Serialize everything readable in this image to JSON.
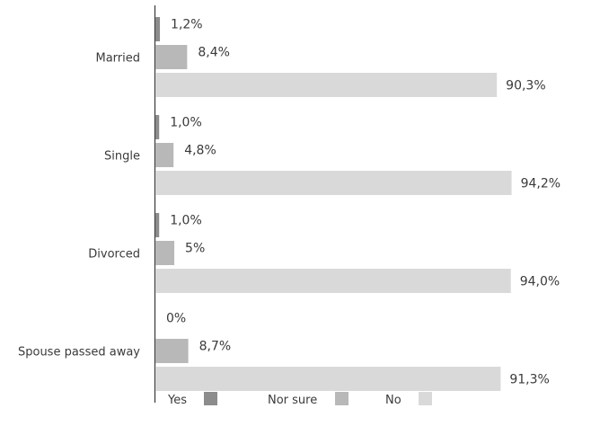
{
  "chart_data": {
    "type": "bar",
    "orientation": "horizontal",
    "categories": [
      "Married",
      "Single",
      "Divorced",
      "Spouse passed away"
    ],
    "series": [
      {
        "name": "Yes",
        "values": [
          1.2,
          1.0,
          1.0,
          0
        ],
        "labels": [
          "1,2%",
          "1,0%",
          "1,0%",
          "0%"
        ],
        "color": "#8c8c8c"
      },
      {
        "name": "Nor sure",
        "values": [
          8.4,
          4.8,
          5.0,
          8.7
        ],
        "labels": [
          "8,4%",
          "4,8%",
          "5%",
          "8,7%"
        ],
        "color": "#b8b8b8"
      },
      {
        "name": "No",
        "values": [
          90.3,
          94.2,
          94.0,
          91.3
        ],
        "labels": [
          "90,3%",
          "94,2%",
          "94,0%",
          "91,3%"
        ],
        "color": "#d9d9d9"
      }
    ],
    "xlim": [
      0,
      100
    ],
    "grid": false,
    "legend_position": "bottom"
  }
}
